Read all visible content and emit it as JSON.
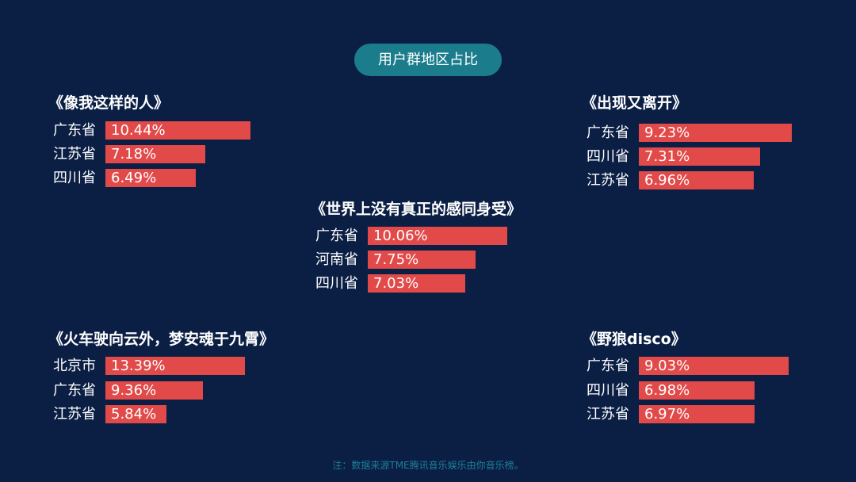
{
  "header": {
    "title": "用户群地区占比"
  },
  "footer": {
    "note": "注：数据来源TME腾讯音乐娱乐由你音乐榜。"
  },
  "colors": {
    "background": "#0b1f45",
    "pill": "#1b7d8c",
    "bar": "#e24a4a",
    "footer": "#1e7f99"
  },
  "chart_data": [
    {
      "type": "bar",
      "orientation": "horizontal",
      "title": "《像我这样的人》",
      "categories": [
        "广东省",
        "江苏省",
        "四川省"
      ],
      "values": [
        10.44,
        7.18,
        6.49
      ],
      "labels": [
        "10.44%",
        "7.18%",
        "6.49%"
      ]
    },
    {
      "type": "bar",
      "orientation": "horizontal",
      "title": "《出现又离开》",
      "categories": [
        "广东省",
        "四川省",
        "江苏省"
      ],
      "values": [
        9.23,
        7.31,
        6.96
      ],
      "labels": [
        "9.23%",
        "7.31%",
        "6.96%"
      ]
    },
    {
      "type": "bar",
      "orientation": "horizontal",
      "title": "《世界上没有真正的感同身受》",
      "categories": [
        "广东省",
        "河南省",
        "四川省"
      ],
      "values": [
        10.06,
        7.75,
        7.03
      ],
      "labels": [
        "10.06%",
        "7.75%",
        "7.03%"
      ]
    },
    {
      "type": "bar",
      "orientation": "horizontal",
      "title": "《火车驶向云外，梦安魂于九霄》",
      "categories": [
        "北京市",
        "广东省",
        "江苏省"
      ],
      "values": [
        13.39,
        9.36,
        5.84
      ],
      "labels": [
        "13.39%",
        "9.36%",
        "5.84%"
      ]
    },
    {
      "type": "bar",
      "orientation": "horizontal",
      "title": "《野狼disco》",
      "categories": [
        "广东省",
        "四川省",
        "江苏省"
      ],
      "values": [
        9.03,
        6.98,
        6.97
      ],
      "labels": [
        "9.03%",
        "6.98%",
        "6.97%"
      ]
    }
  ]
}
